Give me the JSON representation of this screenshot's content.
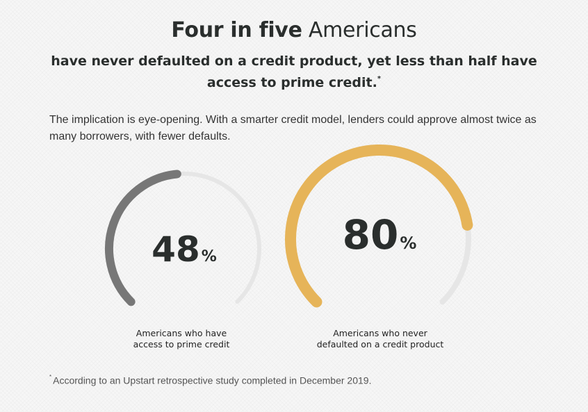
{
  "heading": {
    "strong": "Four in five",
    "light": "Americans"
  },
  "subheading": {
    "text": "have never defaulted on a credit product, yet less than half have access to prime credit.",
    "marker": "*"
  },
  "intro": "The implication is eye-opening. With a smarter credit model, lenders could approve almost twice as many borrowers, with fewer defaults.",
  "colors": {
    "track": "#e6e6e6",
    "gauge_1": "#777777",
    "gauge_2": "#e6b459",
    "number": "#2a2e2d"
  },
  "chart_data": [
    {
      "type": "gauge",
      "value": 48,
      "unit": "%",
      "max": 100,
      "label_lines": [
        "Americans who have",
        "access to prime credit"
      ]
    },
    {
      "type": "gauge",
      "value": 80,
      "unit": "%",
      "max": 100,
      "label_lines": [
        "Americans who never",
        "defaulted on a credit product"
      ]
    }
  ],
  "footnote": {
    "marker": "*",
    "text": "According to an Upstart retrospective study completed in December 2019."
  }
}
